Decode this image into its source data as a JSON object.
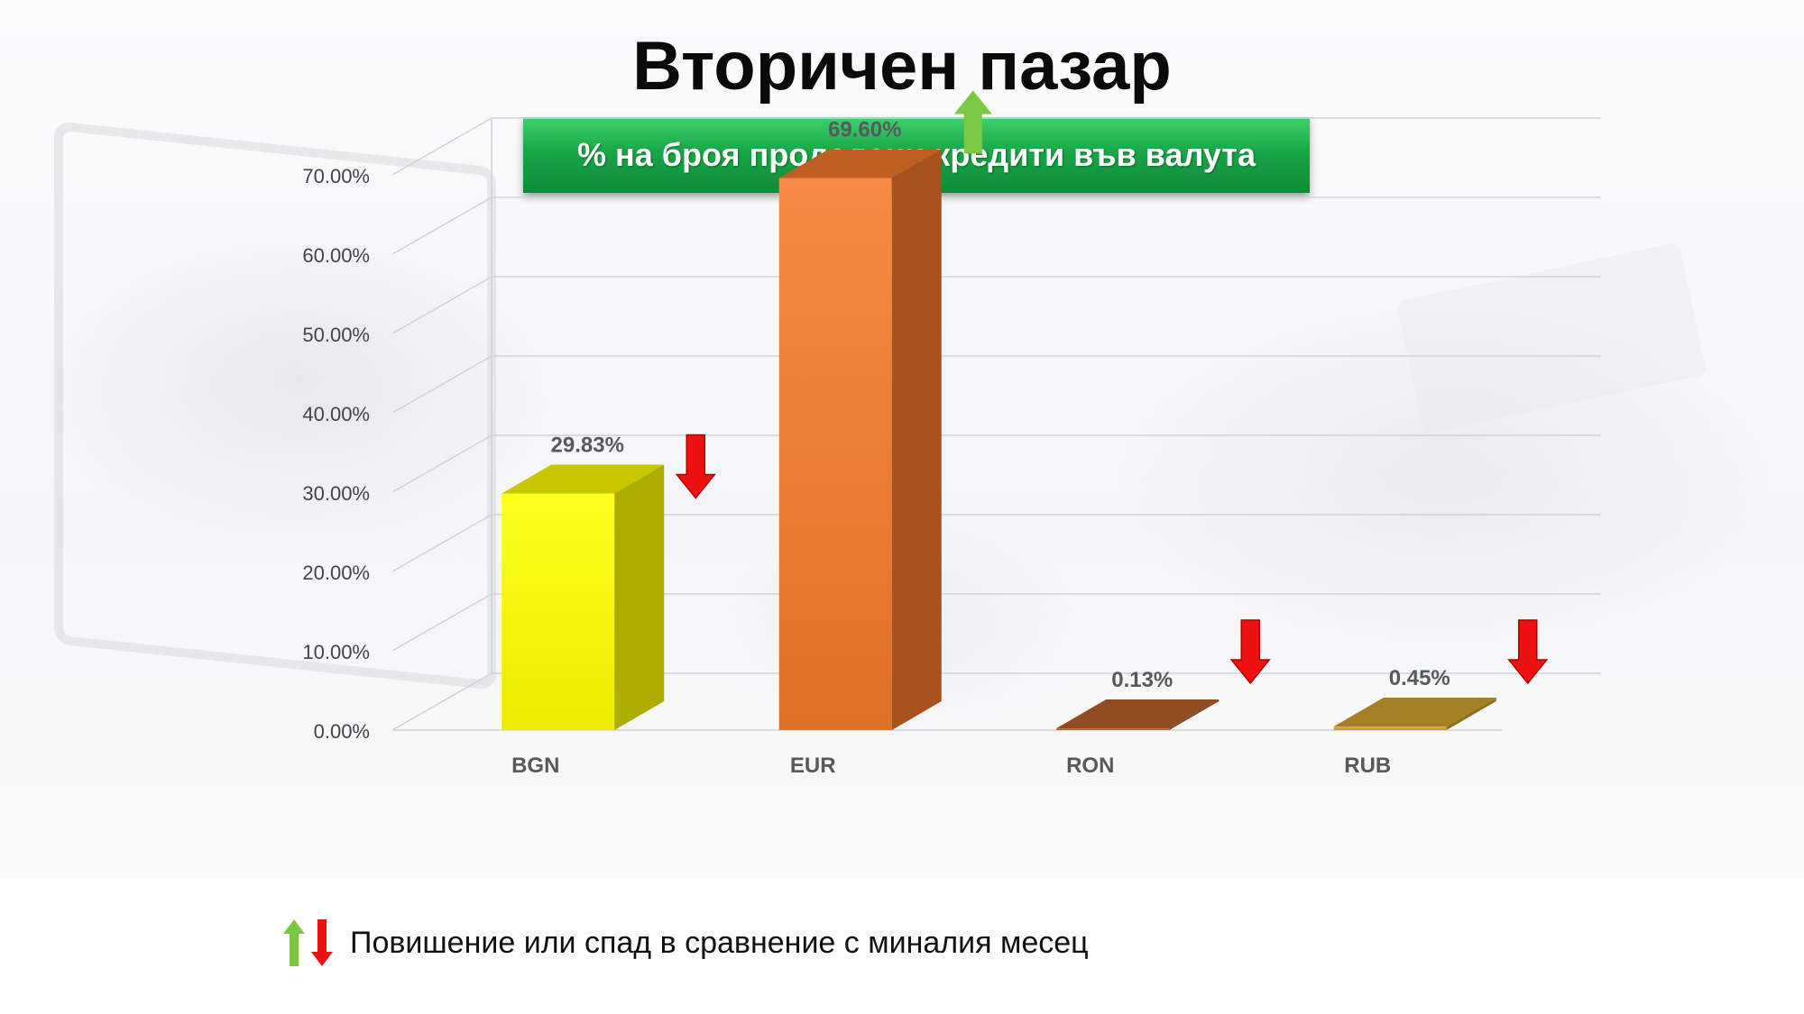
{
  "title": "Вторичен пазар",
  "subtitle": "% на броя продадени кредити във валута",
  "legend_note": "Повишение или спад в сравнение с миналия месец",
  "colors": {
    "up_arrow": "#7cc843",
    "down_arrow": "#ee1111",
    "banner": "#18a847"
  },
  "chart_data": {
    "type": "bar",
    "style": "3d-column",
    "categories": [
      "BGN",
      "EUR",
      "RON",
      "RUB"
    ],
    "values": [
      29.83,
      69.6,
      0.13,
      0.45
    ],
    "value_labels": [
      "29.83%",
      "69.60%",
      "0.13%",
      "0.45%"
    ],
    "trend": [
      "down",
      "up",
      "down",
      "down"
    ],
    "bar_colors": [
      "#ffff00",
      "#f47a2a",
      "#b9632b",
      "#d3a431"
    ],
    "ylim": [
      0,
      70
    ],
    "yticks": [
      "0.00%",
      "10.00%",
      "20.00%",
      "30.00%",
      "40.00%",
      "50.00%",
      "60.00%",
      "70.00%"
    ],
    "grid": true,
    "legend": "none"
  }
}
